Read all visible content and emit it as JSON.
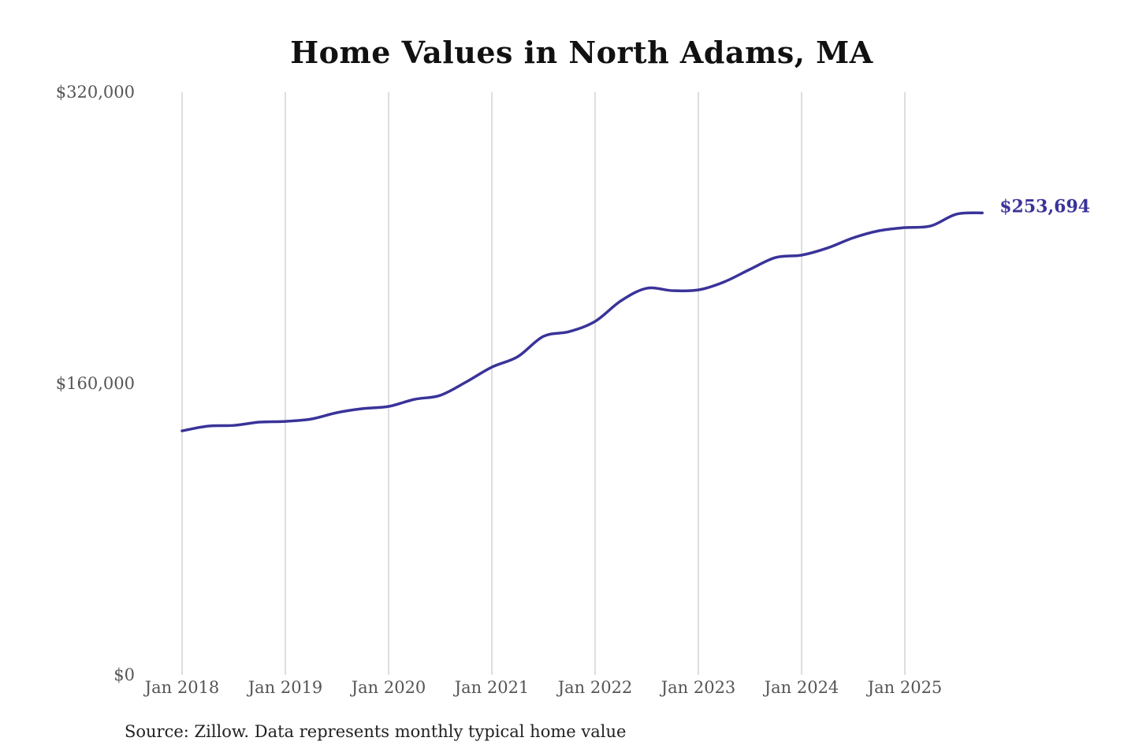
{
  "chart_data": {
    "type": "line",
    "title": "Home Values in North Adams, MA",
    "source": "Source: Zillow. Data represents monthly typical home value",
    "xlabel": "",
    "ylabel": "",
    "ylim": [
      0,
      320000
    ],
    "y_ticks": [
      {
        "value": 0,
        "label": "$0"
      },
      {
        "value": 160000,
        "label": "$160,000"
      },
      {
        "value": 320000,
        "label": "$320,000"
      }
    ],
    "x_ticks": [
      {
        "value": "2018-01",
        "label": "Jan 2018"
      },
      {
        "value": "2019-01",
        "label": "Jan 2019"
      },
      {
        "value": "2020-01",
        "label": "Jan 2020"
      },
      {
        "value": "2021-01",
        "label": "Jan 2021"
      },
      {
        "value": "2022-01",
        "label": "Jan 2022"
      },
      {
        "value": "2023-01",
        "label": "Jan 2023"
      },
      {
        "value": "2024-01",
        "label": "Jan 2024"
      },
      {
        "value": "2025-01",
        "label": "Jan 2025"
      }
    ],
    "grid": "vertical",
    "line_color": "#3a3399",
    "end_label": "$253,694",
    "series": [
      {
        "x": [
          "2018-01",
          "2018-04",
          "2018-07",
          "2018-10",
          "2019-01",
          "2019-04",
          "2019-07",
          "2019-10",
          "2020-01",
          "2020-04",
          "2020-07",
          "2020-10",
          "2021-01",
          "2021-04",
          "2021-07",
          "2021-10",
          "2022-01",
          "2022-04",
          "2022-07",
          "2022-10",
          "2023-01",
          "2023-04",
          "2023-07",
          "2023-10",
          "2024-01",
          "2024-04",
          "2024-07",
          "2024-10",
          "2025-01",
          "2025-04",
          "2025-07",
          "2025-10"
        ],
        "y": [
          134000,
          136600,
          137000,
          138800,
          139200,
          140500,
          144000,
          146200,
          147400,
          151300,
          153500,
          160800,
          169000,
          174700,
          185900,
          188500,
          194100,
          205400,
          212300,
          211000,
          211400,
          215800,
          222700,
          229200,
          230500,
          234400,
          240000,
          243900,
          245600,
          246500,
          253000,
          253694
        ]
      }
    ]
  }
}
